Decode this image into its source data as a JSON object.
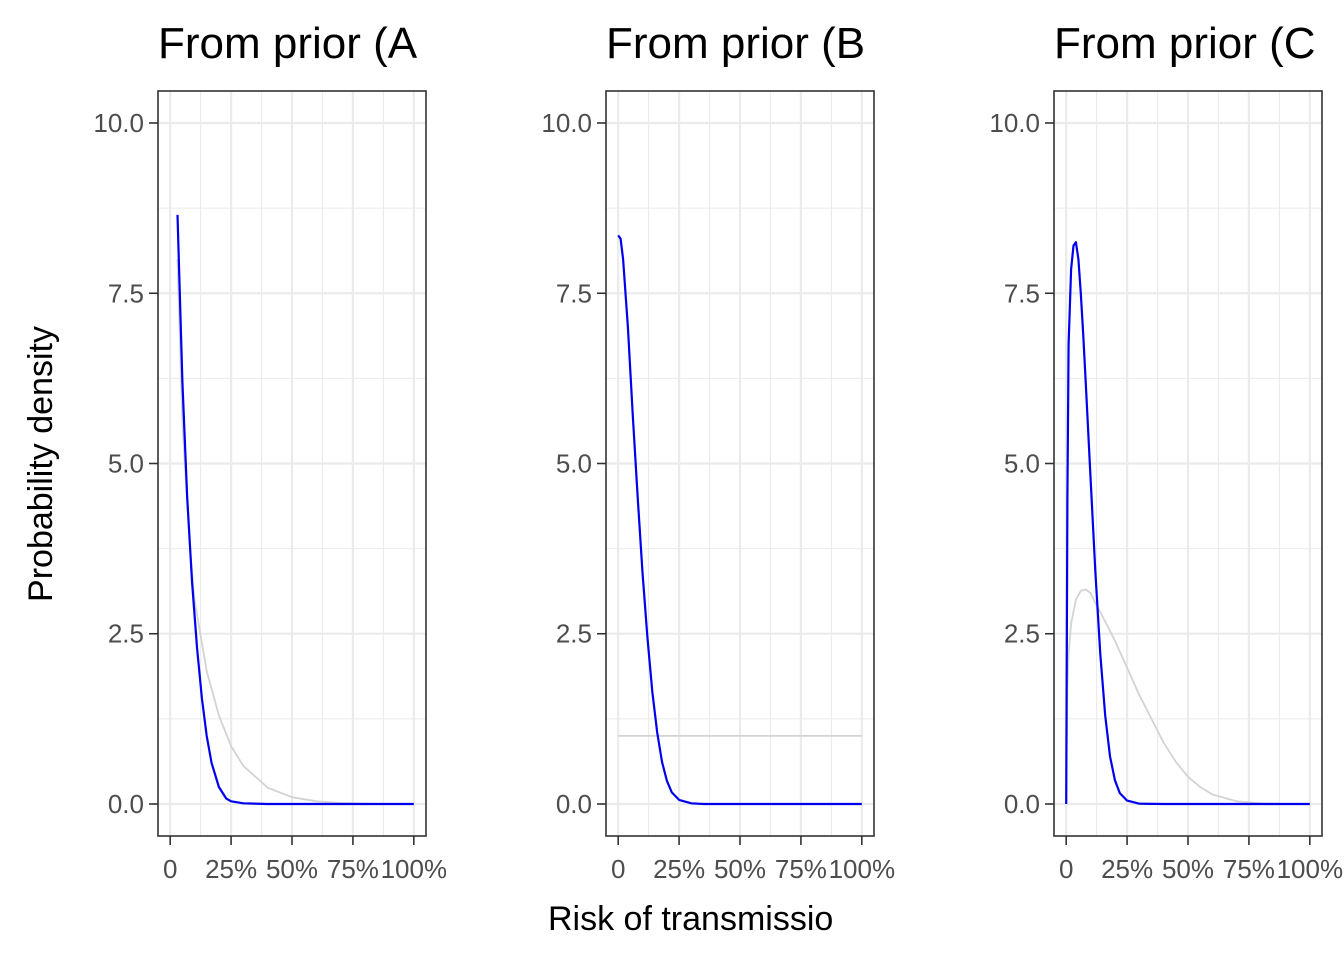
{
  "chart_data": {
    "type": "line",
    "ylabel": "Probability density",
    "xlabel": "Risk of transmissio",
    "ylim": [
      -0.47,
      10.47
    ],
    "xlim": [
      -0.05,
      1.05
    ],
    "yticks": [
      0,
      2.5,
      5,
      7.5,
      10
    ],
    "ytick_labels": [
      "0.0",
      "2.5",
      "5.0",
      "7.5",
      "10.0"
    ],
    "xticks": [
      0,
      0.25,
      0.5,
      0.75,
      1
    ],
    "xtick_labels": [
      "0",
      "25%",
      "50%",
      "75%",
      "100%"
    ],
    "grid": true,
    "colors": {
      "posterior": "#0000ee",
      "prior": "#d3d3d3"
    },
    "panels": [
      {
        "title": "From prior (A",
        "series": [
          {
            "role": "prior",
            "color": "#d3d3d3",
            "x": [
              0.03,
              0.05,
              0.08,
              0.1,
              0.15,
              0.2,
              0.25,
              0.3,
              0.4,
              0.5,
              0.6,
              0.7,
              0.8,
              0.9,
              1.0
            ],
            "y": [
              8.0,
              5.6,
              3.8,
              3.0,
              1.95,
              1.3,
              0.85,
              0.56,
              0.24,
              0.1,
              0.04,
              0.015,
              0.005,
              0.001,
              0.0
            ]
          },
          {
            "role": "posterior",
            "color": "#0000ee",
            "x": [
              0.03,
              0.05,
              0.07,
              0.09,
              0.11,
              0.13,
              0.15,
              0.17,
              0.2,
              0.23,
              0.25,
              0.3,
              0.4,
              0.6,
              0.8,
              1.0
            ],
            "y": [
              8.65,
              6.2,
              4.5,
              3.25,
              2.3,
              1.55,
              1.0,
              0.6,
              0.25,
              0.08,
              0.04,
              0.01,
              0.0,
              0.0,
              0.0,
              0.0
            ]
          }
        ]
      },
      {
        "title": "From prior (B",
        "series": [
          {
            "role": "prior",
            "color": "#d3d3d3",
            "x": [
              0.0,
              1.0
            ],
            "y": [
              1.0,
              1.0
            ]
          },
          {
            "role": "posterior",
            "color": "#0000ee",
            "x": [
              0.0,
              0.01,
              0.02,
              0.04,
              0.06,
              0.08,
              0.1,
              0.12,
              0.14,
              0.16,
              0.18,
              0.2,
              0.22,
              0.25,
              0.3,
              0.35,
              0.4,
              0.6,
              0.8,
              1.0
            ],
            "y": [
              8.35,
              8.3,
              8.0,
              7.0,
              5.7,
              4.5,
              3.4,
              2.45,
              1.65,
              1.05,
              0.62,
              0.34,
              0.17,
              0.06,
              0.01,
              0.0,
              0.0,
              0.0,
              0.0,
              0.0
            ]
          }
        ]
      },
      {
        "title": "From prior (C",
        "series": [
          {
            "role": "prior",
            "color": "#d3d3d3",
            "x": [
              0.0,
              0.005,
              0.01,
              0.02,
              0.04,
              0.06,
              0.08,
              0.1,
              0.12,
              0.15,
              0.2,
              0.25,
              0.3,
              0.35,
              0.4,
              0.45,
              0.5,
              0.55,
              0.6,
              0.7,
              0.8,
              0.9,
              1.0
            ],
            "y": [
              0.0,
              1.7,
              2.2,
              2.65,
              3.0,
              3.13,
              3.15,
              3.1,
              2.95,
              2.75,
              2.4,
              2.0,
              1.6,
              1.25,
              0.9,
              0.62,
              0.4,
              0.25,
              0.14,
              0.04,
              0.008,
              0.001,
              0.0
            ]
          },
          {
            "role": "posterior",
            "color": "#0000ee",
            "x": [
              0.0,
              0.005,
              0.01,
              0.02,
              0.03,
              0.04,
              0.05,
              0.06,
              0.07,
              0.08,
              0.1,
              0.12,
              0.14,
              0.16,
              0.18,
              0.2,
              0.22,
              0.25,
              0.3,
              0.4,
              0.6,
              0.8,
              1.0
            ],
            "y": [
              0.0,
              4.5,
              6.75,
              7.85,
              8.2,
              8.25,
              8.0,
              7.5,
              6.9,
              6.2,
              4.8,
              3.4,
              2.2,
              1.3,
              0.7,
              0.35,
              0.16,
              0.05,
              0.005,
              0.0,
              0.0,
              0.0,
              0.0
            ]
          }
        ]
      }
    ]
  }
}
